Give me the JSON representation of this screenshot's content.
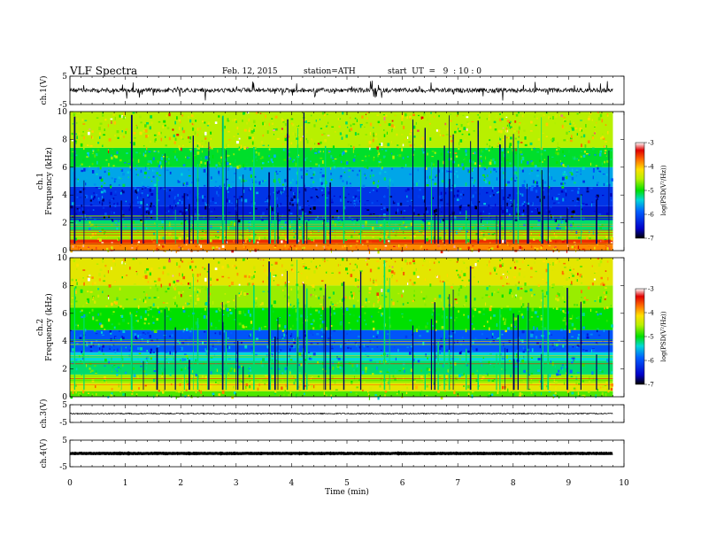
{
  "header": {
    "title": "VLF  Spectra",
    "date": "Feb. 12, 2015",
    "station": "station=ATH",
    "start": "start  UT  =   9  : 10 : 0"
  },
  "chart_data": [
    {
      "type": "line",
      "name": "ch1-waveform",
      "ylabel": "ch.1(V)",
      "ylim": [
        -5,
        5
      ],
      "ytick_labels": [
        "5",
        "-5"
      ],
      "x_range_min": [
        0,
        9.8
      ],
      "trace_level_v": 0
    },
    {
      "type": "heatmap",
      "name": "ch1-spectrogram",
      "ylabel": "ch.1\nFrequency (kHz)",
      "ylim": [
        0,
        10
      ],
      "ytick_labels": [
        "0",
        "2",
        "4",
        "6",
        "8",
        "10"
      ],
      "x_range_min": [
        0,
        9.8
      ],
      "colorbar": {
        "label": "log(PSD(V²/Hz))",
        "range": [
          -7,
          -3
        ],
        "tick_labels": [
          "-3",
          "-4",
          "-5",
          "-6",
          "-7"
        ]
      }
    },
    {
      "type": "heatmap",
      "name": "ch2-spectrogram",
      "ylabel": "ch.2\nFrequency (kHz)",
      "ylim": [
        0,
        10
      ],
      "ytick_labels": [
        "0",
        "2",
        "4",
        "6",
        "8",
        "10"
      ],
      "x_range_min": [
        0,
        9.8
      ],
      "colorbar": {
        "label": "log(PSD(V²/Hz))",
        "range": [
          -7,
          -3
        ],
        "tick_labels": [
          "-3",
          "-4",
          "-5",
          "-6",
          "-7"
        ]
      }
    },
    {
      "type": "line",
      "name": "ch3-waveform",
      "ylabel": "ch.3(V)",
      "ylim": [
        -5,
        5
      ],
      "ytick_labels": [
        "5",
        "-5"
      ],
      "x_range_min": [
        0,
        9.8
      ],
      "trace_level_v": 0
    },
    {
      "type": "line",
      "name": "ch4-waveform",
      "ylabel": "ch.4(V)",
      "ylim": [
        -5,
        5
      ],
      "ytick_labels": [
        "5",
        "-5"
      ],
      "x_range_min": [
        0,
        9.8
      ],
      "trace_level_v": 0
    }
  ],
  "xaxis": {
    "label": "Time  (min)",
    "range": [
      0,
      10
    ],
    "tick_labels": [
      "0",
      "1",
      "2",
      "3",
      "4",
      "5",
      "6",
      "7",
      "8",
      "9",
      "10"
    ]
  }
}
